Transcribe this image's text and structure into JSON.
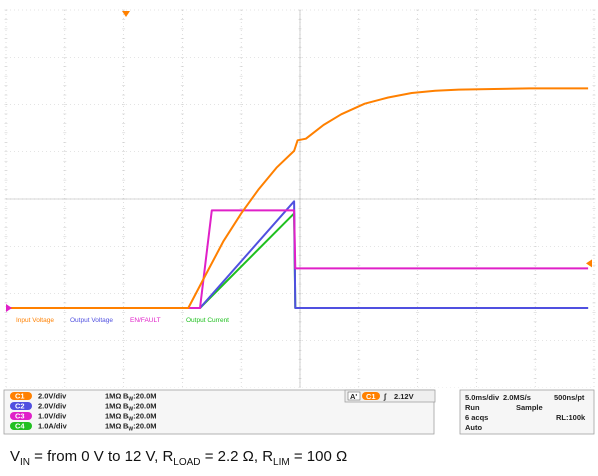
{
  "chart_data": {
    "type": "line",
    "instrument": "oscilloscope",
    "x_unit": "ms",
    "x_range": [
      -24.5,
      25
    ],
    "grid": true,
    "series": [
      {
        "name": "Input Voltage",
        "channel": "C1",
        "color": "#ff8000",
        "scale_per_div": "2.0V/div",
        "coupling": "1MΩ",
        "bandwidth": "20.0M",
        "points": [
          [
            -24.5,
            0
          ],
          [
            -9.0,
            0
          ],
          [
            -7.5,
            1.1
          ],
          [
            -6.0,
            2.2
          ],
          [
            -4.5,
            3.1
          ],
          [
            -3.0,
            3.9
          ],
          [
            -1.5,
            4.6
          ],
          [
            0,
            5.15
          ],
          [
            0.3,
            5.5
          ],
          [
            1.0,
            5.55
          ],
          [
            2.5,
            6.0
          ],
          [
            4.0,
            6.35
          ],
          [
            6.0,
            6.7
          ],
          [
            8.0,
            6.9
          ],
          [
            10.0,
            7.05
          ],
          [
            12.0,
            7.12
          ],
          [
            14.0,
            7.16
          ],
          [
            17.0,
            7.18
          ],
          [
            20.0,
            7.2
          ],
          [
            25.0,
            7.2
          ]
        ]
      },
      {
        "name": "Output Voltage",
        "channel": "C2",
        "color": "#5050e0",
        "scale_per_div": "2.0V/div",
        "coupling": "1MΩ",
        "bandwidth": "20.0M",
        "points": [
          [
            -24.5,
            0
          ],
          [
            -8.0,
            0
          ],
          [
            0,
            3.5
          ],
          [
            0.1,
            0
          ],
          [
            25.0,
            0
          ]
        ]
      },
      {
        "name": "EN/FAULT",
        "channel": "C3",
        "color": "#e020c8",
        "scale_per_div": "1.0V/div",
        "coupling": "1MΩ",
        "bandwidth": "20.0M",
        "points": [
          [
            -24.5,
            0
          ],
          [
            -8.0,
            0
          ],
          [
            -7.0,
            3.2
          ],
          [
            0,
            3.2
          ],
          [
            0.1,
            1.3
          ],
          [
            25.0,
            1.3
          ]
        ]
      },
      {
        "name": "Output Current",
        "channel": "C4",
        "color": "#20c020",
        "scale_per_div": "1.0A/div",
        "coupling": "1MΩ",
        "bandwidth": "20.0M",
        "points": [
          [
            -24.5,
            0
          ],
          [
            -8.0,
            0
          ],
          [
            0,
            3.1
          ],
          [
            0.1,
            0
          ],
          [
            25.0,
            0
          ]
        ]
      }
    ]
  },
  "status_panel": {
    "channels": [
      {
        "id": "C1",
        "scale": "2.0V/div",
        "coupling": "1MΩ",
        "bw": "20.0M",
        "color": "#ff8000"
      },
      {
        "id": "C2",
        "scale": "2.0V/div",
        "coupling": "1MΩ",
        "bw": "20.0M",
        "color": "#5050e0"
      },
      {
        "id": "C3",
        "scale": "1.0V/div",
        "coupling": "1MΩ",
        "bw": "20.0M",
        "color": "#e020c8"
      },
      {
        "id": "C4",
        "scale": "1.0A/div",
        "coupling": "1MΩ",
        "bw": "20.0M",
        "color": "#20c020"
      }
    ],
    "trigger": {
      "source_label": "A'",
      "channel": "C1",
      "slope": "∫",
      "level": "2.12V"
    },
    "timebase": {
      "time_per_div": "5.0ms/div",
      "sample_rate": "2.0MS/s",
      "resolution": "500ns/pt",
      "mode": "Run",
      "acquisition": "Sample",
      "acqs": "6 acqs",
      "record_length": "RL:100k",
      "auto": "Auto"
    }
  },
  "caption": {
    "vin_main": "V",
    "vin_sub": "IN",
    "vin_rest": " = from 0 V to 12 V, R",
    "rload_sub": "LOAD",
    "rload_rest": " = 2.2 Ω, R",
    "rlim_sub": "LIM",
    "rlim_rest": " = 100 Ω"
  }
}
